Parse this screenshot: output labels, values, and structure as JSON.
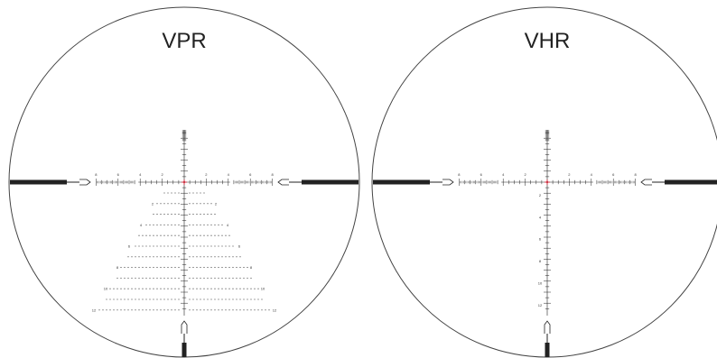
{
  "reticles": [
    {
      "key": "vpr",
      "title": "VPR",
      "horizontal_labels": [
        "8",
        "6",
        "4",
        "2",
        "2",
        "4",
        "6",
        "8"
      ],
      "vertical_labels": [],
      "tree_row_labels": [
        "2",
        "4",
        "6",
        "8",
        "10",
        "12"
      ]
    },
    {
      "key": "vhr",
      "title": "VHR",
      "horizontal_labels": [
        "8",
        "6",
        "4",
        "2",
        "2",
        "4",
        "6",
        "8"
      ],
      "vertical_labels": [
        "2",
        "4",
        "6",
        "8",
        "10",
        "12"
      ],
      "tree_row_labels": []
    }
  ],
  "colors": {
    "circle": "#444444",
    "reticle": "#222222",
    "center_dot": "#cc3344"
  }
}
